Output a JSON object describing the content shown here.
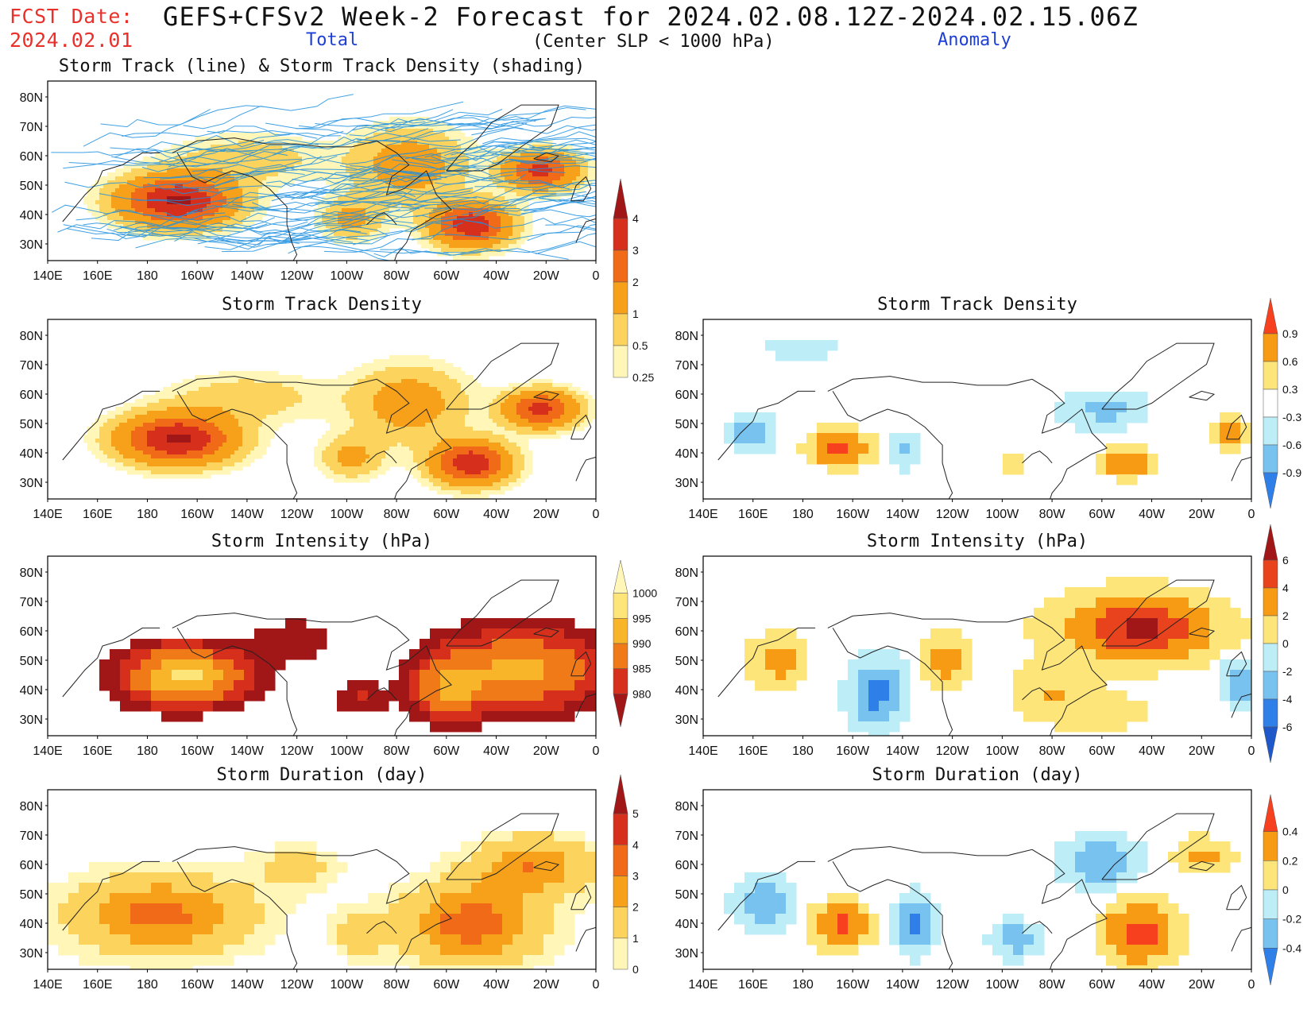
{
  "header": {
    "fcst_label": "FCST Date:",
    "fcst_date": "2024.02.01",
    "title": "GEFS+CFSv2 Week-2 Forecast for 2024.02.08.12Z-2024.02.15.06Z",
    "total_label": "Total",
    "subtitle": "(Center SLP < 1000 hPa)",
    "anomaly_label": "Anomaly"
  },
  "map_axes": {
    "lat_labels": [
      "80N",
      "70N",
      "60N",
      "50N",
      "40N",
      "30N"
    ],
    "lon_labels": [
      "140E",
      "160E",
      "180",
      "160W",
      "140W",
      "120W",
      "100W",
      "80W",
      "60W",
      "40W",
      "20W",
      "0"
    ]
  },
  "panels": [
    {
      "id": "track",
      "title": "Storm Track (line) & Storm Track Density (shading)",
      "col": 0,
      "row": 0,
      "field": "track"
    },
    {
      "id": "density-total",
      "title": "Storm Track Density",
      "col": 0,
      "row": 1,
      "field": "density"
    },
    {
      "id": "density-anom",
      "title": "Storm Track Density",
      "col": 1,
      "row": 1,
      "field": "densityAnom"
    },
    {
      "id": "intensity-total",
      "title": "Storm Intensity (hPa)",
      "col": 0,
      "row": 2,
      "field": "intensity"
    },
    {
      "id": "intensity-anom",
      "title": "Storm Intensity (hPa)",
      "col": 1,
      "row": 2,
      "field": "intensityAnom"
    },
    {
      "id": "duration-total",
      "title": "Storm Duration (day)",
      "col": 0,
      "row": 3,
      "field": "duration"
    },
    {
      "id": "duration-anom",
      "title": "Storm Duration (day)",
      "col": 1,
      "row": 3,
      "field": "durationAnom"
    }
  ],
  "colorbars": [
    {
      "id": "density-total-cbar",
      "labels": [
        "4",
        "3",
        "2",
        "1",
        "0.5",
        "0.25"
      ],
      "colors": [
        "#a11616",
        "#d6301c",
        "#f06a18",
        "#f7a11a",
        "#fcd35c",
        "#fff6b8"
      ]
    },
    {
      "id": "density-anom-cbar",
      "labels": [
        "0.9",
        "0.6",
        "0.3",
        "-0.3",
        "-0.6",
        "-0.9"
      ],
      "colors": [
        "#f6401e",
        "#f89b14",
        "#fde57a",
        "#ffffff",
        "#bdeef8",
        "#78c2f0",
        "#2f7fe8"
      ]
    },
    {
      "id": "intensity-total-cbar",
      "labels": [
        "1000",
        "995",
        "990",
        "985",
        "980"
      ],
      "colors": [
        "#fff6b8",
        "#fde57a",
        "#f8b52a",
        "#f07a18",
        "#d6301c",
        "#a11616"
      ]
    },
    {
      "id": "intensity-anom-cbar",
      "labels": [
        "6",
        "4",
        "2",
        "0",
        "-2",
        "-4",
        "-6"
      ],
      "colors": [
        "#a11616",
        "#e8431c",
        "#f89b14",
        "#fde57a",
        "#bdeef8",
        "#78c2f0",
        "#2f7fe8",
        "#1f58c8"
      ]
    },
    {
      "id": "duration-total-cbar",
      "labels": [
        "5",
        "4",
        "3",
        "2",
        "1",
        "0"
      ],
      "colors": [
        "#a11616",
        "#d6301c",
        "#f06a18",
        "#f7a11a",
        "#fcd35c",
        "#fff6b8"
      ]
    },
    {
      "id": "duration-anom-cbar",
      "labels": [
        "0.4",
        "0.2",
        "0",
        "-0.2",
        "-0.4"
      ],
      "colors": [
        "#f6401e",
        "#f89b14",
        "#fde57a",
        "#bdeef8",
        "#78c2f0",
        "#2f7fe8"
      ]
    }
  ],
  "colors": {
    "track_line": "#1e90e0",
    "coastline": "#222222",
    "title_red": "#e8312b",
    "label_blue": "#1e3fd4"
  }
}
